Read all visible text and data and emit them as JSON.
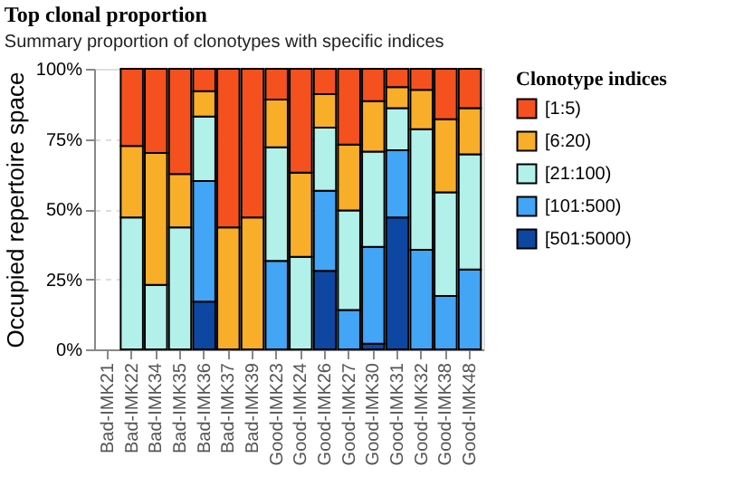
{
  "chart_data": {
    "type": "bar",
    "stacked": true,
    "title": "Top clonal proportion",
    "subtitle": "Summary proportion of clonotypes with specific indices",
    "ylabel": "Occupied repertoire space",
    "legend_title": "Clonotype indices",
    "legend": "right",
    "grid": "y",
    "categories": [
      "Bad-IMK21",
      "Bad-IMK22",
      "Bad-IMK34",
      "Bad-IMK35",
      "Bad-IMK36",
      "Bad-IMK37",
      "Bad-IMK39",
      "Good-IMK23",
      "Good-IMK24",
      "Good-IMK26",
      "Good-IMK27",
      "Good-IMK30",
      "Good-IMK31",
      "Good-IMK32",
      "Good-IMK38",
      "Good-IMK48"
    ],
    "ylim": [
      0,
      100
    ],
    "yticks": [
      {
        "value": 0,
        "label": "0%"
      },
      {
        "value": 25,
        "label": "25%"
      },
      {
        "value": 50,
        "label": "50%"
      },
      {
        "value": 75,
        "label": "75%"
      },
      {
        "value": 100,
        "label": "100%"
      }
    ],
    "series": [
      {
        "name": "[501:5000)",
        "color": "#0d47a1",
        "values": [
          null,
          null,
          null,
          null,
          17,
          null,
          null,
          null,
          null,
          28,
          null,
          2,
          47,
          null,
          null,
          null
        ]
      },
      {
        "name": "[101:500)",
        "color": "#42a5f5",
        "values": [
          null,
          null,
          null,
          null,
          43,
          null,
          null,
          31.5,
          null,
          28.5,
          14,
          34.5,
          24,
          35.5,
          19,
          28.5
        ]
      },
      {
        "name": "[21:100)",
        "color": "#b2f1ea",
        "values": [
          null,
          47,
          23,
          43.5,
          23,
          null,
          null,
          40.5,
          33,
          22.5,
          35.5,
          34,
          15,
          43,
          37,
          41
        ]
      },
      {
        "name": "[6:20)",
        "color": "#f9ae2a",
        "values": [
          null,
          25.5,
          47,
          19,
          9,
          43.5,
          47,
          17,
          30,
          12,
          23.5,
          18,
          7.5,
          14,
          26,
          16.5
        ]
      },
      {
        "name": "[1:5)",
        "color": "#f4511e",
        "values": [
          null,
          27.5,
          30,
          37.5,
          8,
          56.5,
          53,
          11,
          37,
          9,
          27,
          11.5,
          6.5,
          7.5,
          18,
          14
        ]
      }
    ]
  }
}
